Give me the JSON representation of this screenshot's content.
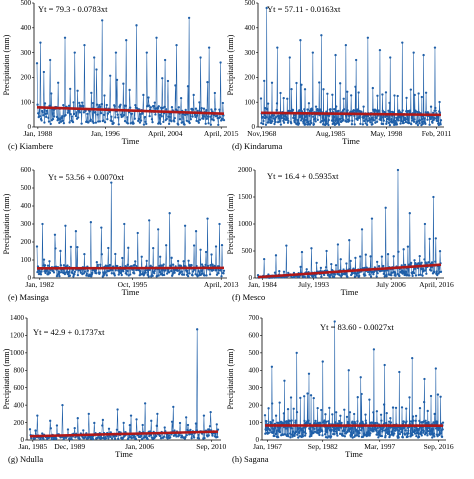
{
  "chart_data": [
    {
      "type": "line",
      "caption": "(c) Kiambere",
      "equation": "Yt = 79.3 - 0.0783xt",
      "xlabel": "Time",
      "ylabel": "Precipitation (mm)",
      "ylim": [
        0,
        500
      ],
      "yticks": [
        0,
        100,
        200,
        300,
        400,
        500
      ],
      "xtick_labels": [
        "Jan, 1988",
        "Jan, 1996",
        "April, 2004",
        "April, 2015"
      ],
      "trend": {
        "intercept": 79.3,
        "slope": -0.0783
      },
      "n_points": 328,
      "peak_values": [
        340,
        270,
        360,
        300,
        330,
        280,
        430,
        300,
        350,
        410,
        300,
        360,
        270,
        330,
        440,
        280,
        320,
        260
      ],
      "colors": {
        "series": "#1f5fa8",
        "trend": "#b01818"
      }
    },
    {
      "type": "line",
      "caption": "(d) Kindaruma",
      "equation": "Yt = 57.11 - 0.0163xt",
      "xlabel": "Time",
      "ylabel": "Precipitation (mm)",
      "ylim": [
        0,
        500
      ],
      "yticks": [
        0,
        100,
        200,
        300,
        400,
        500
      ],
      "xtick_labels": [
        "Nov,1968",
        "Aug,1985",
        "May, 1998",
        "Feb, 2011"
      ],
      "trend": {
        "intercept": 57.11,
        "slope": -0.0163
      },
      "n_points": 508,
      "peak_values": [
        480,
        320,
        280,
        350,
        300,
        370,
        290,
        330,
        270,
        360,
        310,
        280,
        340,
        300,
        290,
        320
      ],
      "colors": {
        "series": "#1f5fa8",
        "trend": "#b01818"
      }
    },
    {
      "type": "line",
      "caption": "(e) Masinga",
      "equation": "Yt = 53.56 + 0.0070xt",
      "xlabel": "Time",
      "ylabel": "Precipitation (mm)",
      "ylim": [
        0,
        600
      ],
      "yticks": [
        0,
        100,
        200,
        300,
        400,
        500,
        600
      ],
      "xtick_labels": [
        "Jan, 1982",
        "Oct, 1995",
        "April, 2013"
      ],
      "trend": {
        "intercept": 53.56,
        "slope": 0.007
      },
      "n_points": 376,
      "peak_values": [
        300,
        240,
        290,
        260,
        310,
        280,
        530,
        300,
        250,
        320,
        270,
        360,
        290,
        260,
        330,
        300
      ],
      "colors": {
        "series": "#1f5fa8",
        "trend": "#b01818"
      }
    },
    {
      "type": "line",
      "caption": "(f) Mesco",
      "equation": "Yt = 16.4 + 0.5935xt",
      "xlabel": "Time",
      "ylabel": "Precipitation (mm)",
      "ylim": [
        0,
        2000
      ],
      "yticks": [
        0,
        500,
        1000,
        1500,
        2000
      ],
      "xtick_labels": [
        "Jan, 1984",
        "July, 1993",
        "July 2006",
        "April, 2016"
      ],
      "trend": {
        "intercept": 16.4,
        "slope": 0.5935
      },
      "n_points": 388,
      "peak_values": [
        350,
        420,
        600,
        480,
        550,
        500,
        620,
        700,
        900,
        1100,
        1300,
        2050,
        1200,
        1000,
        1500
      ],
      "colors": {
        "series": "#1f5fa8",
        "trend": "#b01818"
      }
    },
    {
      "type": "line",
      "caption": "(g) Ndulla",
      "equation": "Yt = 42.9 + 0.1737xt",
      "xlabel": "Time",
      "ylabel": "Precipitation (mm)",
      "ylim": [
        0,
        1400
      ],
      "yticks": [
        0,
        200,
        400,
        600,
        800,
        1000,
        1200,
        1400
      ],
      "xtick_labels": [
        "Jan, 1985",
        "Dec, 1989",
        "Jan, 2006",
        "Sep, 2010"
      ],
      "trend": {
        "intercept": 42.9,
        "slope": 0.1737
      },
      "n_points": 308,
      "peak_values": [
        280,
        220,
        400,
        250,
        300,
        230,
        350,
        280,
        420,
        300,
        380,
        260,
        1270,
        320
      ],
      "colors": {
        "series": "#1f5fa8",
        "trend": "#b01818"
      }
    },
    {
      "type": "line",
      "caption": "(h) Sagana",
      "equation": "Yt = 83.60 - 0.0027xt",
      "xlabel": "Time",
      "ylabel": "Precipitation (mm)",
      "ylim": [
        0,
        700
      ],
      "yticks": [
        0,
        100,
        200,
        300,
        400,
        500,
        600,
        700
      ],
      "xtick_labels": [
        "Jan, 1967",
        "Sep, 1982",
        "Mar, 1997",
        "Sep, 2016"
      ],
      "trend": {
        "intercept": 83.6,
        "slope": -0.0027
      },
      "n_points": 596,
      "peak_values": [
        420,
        340,
        500,
        380,
        450,
        680,
        400,
        360,
        520,
        430,
        390,
        470,
        350,
        410
      ],
      "colors": {
        "series": "#1f5fa8",
        "trend": "#b01818"
      }
    }
  ]
}
